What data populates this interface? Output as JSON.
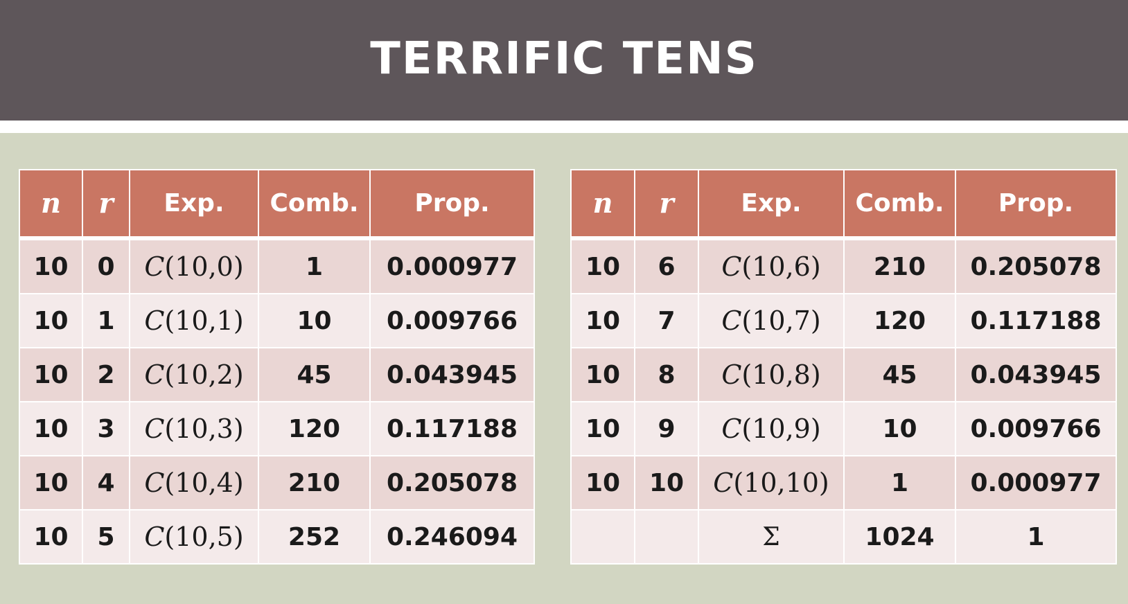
{
  "title": "TERRIFIC TENS",
  "columns": {
    "n": "n",
    "r": "r",
    "exp": "Exp.",
    "comb": "Comb.",
    "prop": "Prop."
  },
  "left_rows": [
    {
      "n": "10",
      "r": "0",
      "exp_fn": "C",
      "exp_args": "(10,0)",
      "comb": "1",
      "prop": "0.000977"
    },
    {
      "n": "10",
      "r": "1",
      "exp_fn": "C",
      "exp_args": "(10,1)",
      "comb": "10",
      "prop": "0.009766"
    },
    {
      "n": "10",
      "r": "2",
      "exp_fn": "C",
      "exp_args": "(10,2)",
      "comb": "45",
      "prop": "0.043945"
    },
    {
      "n": "10",
      "r": "3",
      "exp_fn": "C",
      "exp_args": "(10,3)",
      "comb": "120",
      "prop": "0.117188"
    },
    {
      "n": "10",
      "r": "4",
      "exp_fn": "C",
      "exp_args": "(10,4)",
      "comb": "210",
      "prop": "0.205078"
    },
    {
      "n": "10",
      "r": "5",
      "exp_fn": "C",
      "exp_args": "(10,5)",
      "comb": "252",
      "prop": "0.246094"
    }
  ],
  "right_rows": [
    {
      "n": "10",
      "r": "6",
      "exp_fn": "C",
      "exp_args": "(10,6)",
      "comb": "210",
      "prop": "0.205078"
    },
    {
      "n": "10",
      "r": "7",
      "exp_fn": "C",
      "exp_args": "(10,7)",
      "comb": "120",
      "prop": "0.117188"
    },
    {
      "n": "10",
      "r": "8",
      "exp_fn": "C",
      "exp_args": "(10,8)",
      "comb": "45",
      "prop": "0.043945"
    },
    {
      "n": "10",
      "r": "9",
      "exp_fn": "C",
      "exp_args": "(10,9)",
      "comb": "10",
      "prop": "0.009766"
    },
    {
      "n": "10",
      "r": "10",
      "exp_fn": "C",
      "exp_args": "(10,10)",
      "comb": "1",
      "prop": "0.000977"
    }
  ],
  "sum_row": {
    "symbol": "Σ",
    "comb": "1024",
    "prop": "1"
  },
  "colors": {
    "title_bar": "#5e565a",
    "background": "#d2d6c2",
    "header": "#c97663",
    "row_odd": "#ead6d4",
    "row_even": "#f4eaea"
  }
}
